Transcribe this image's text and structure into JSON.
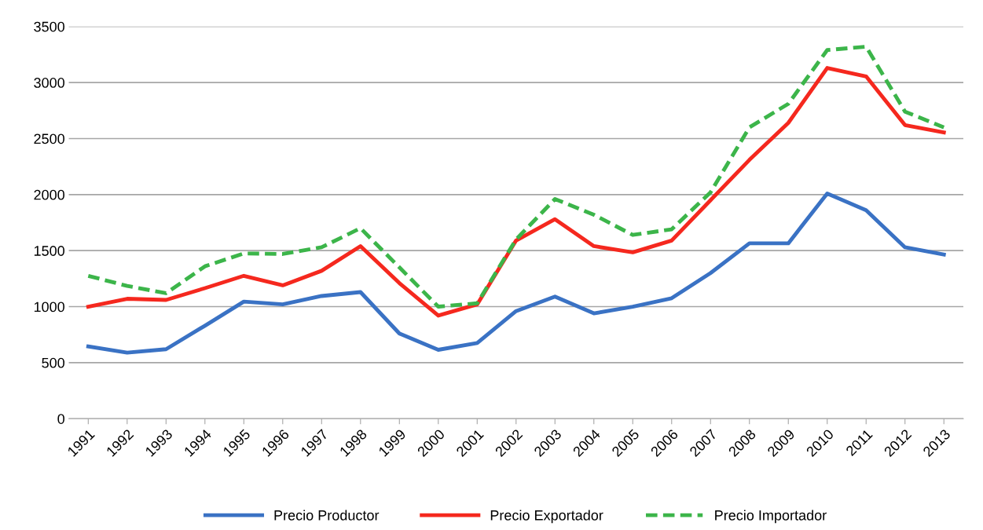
{
  "chart_data": {
    "type": "line",
    "categories": [
      "1991",
      "1992",
      "1993",
      "1994",
      "1995",
      "1996",
      "1997",
      "1998",
      "1999",
      "2000",
      "2001",
      "2002",
      "2003",
      "2004",
      "2005",
      "2006",
      "2007",
      "2008",
      "2009",
      "2010",
      "2011",
      "2012",
      "2013"
    ],
    "series": [
      {
        "name": "Precio Productor",
        "color": "#3a72c4",
        "line_style": "solid",
        "values": [
          645,
          590,
          620,
          830,
          1045,
          1020,
          1095,
          1130,
          760,
          615,
          675,
          960,
          1090,
          940,
          1000,
          1075,
          1300,
          1565,
          1565,
          2010,
          1860,
          1530,
          1465
        ]
      },
      {
        "name": "Precio Exportador",
        "color": "#f5281e",
        "line_style": "solid",
        "values": [
          1000,
          1070,
          1060,
          1165,
          1275,
          1190,
          1320,
          1540,
          1210,
          920,
          1020,
          1590,
          1780,
          1540,
          1485,
          1590,
          1950,
          2310,
          2640,
          3130,
          3055,
          2620,
          2555
        ]
      },
      {
        "name": "Precio Importador",
        "color": "#3cb54a",
        "line_style": "dashed",
        "values": [
          1275,
          1185,
          1120,
          1360,
          1475,
          1470,
          1530,
          1700,
          1350,
          1000,
          1030,
          1600,
          1960,
          1820,
          1640,
          1690,
          2020,
          2600,
          2810,
          3290,
          3320,
          2740,
          2600
        ]
      }
    ],
    "ylim": [
      0,
      3500
    ],
    "yticks": [
      0,
      500,
      1000,
      1500,
      2000,
      2500,
      3000,
      3500
    ],
    "grid": "y",
    "legend": "bottom",
    "marker": "none"
  }
}
